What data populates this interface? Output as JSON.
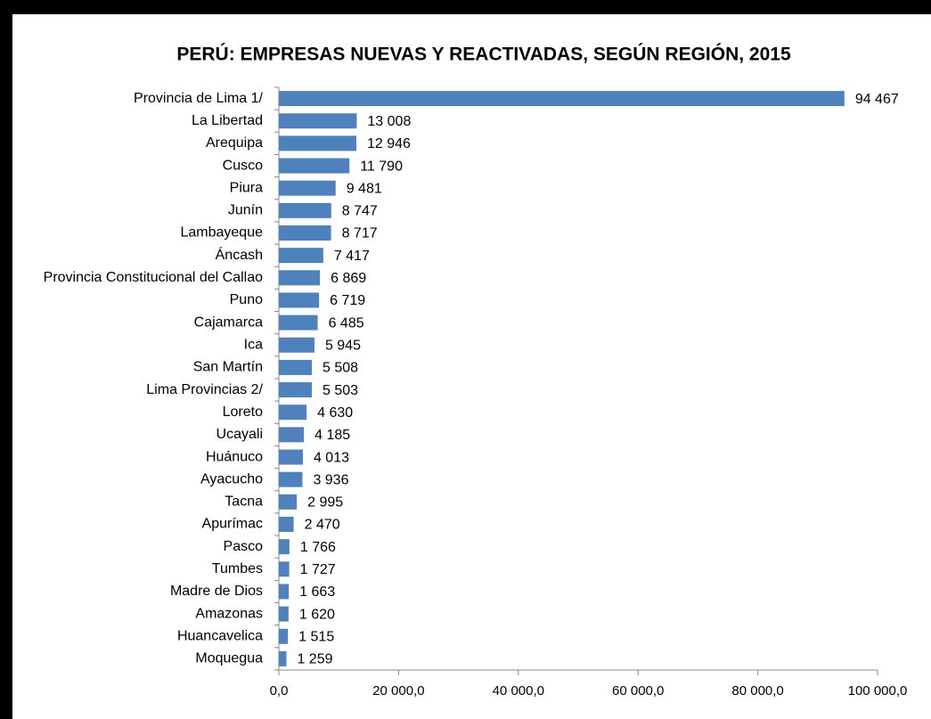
{
  "chart_data": {
    "type": "bar",
    "orientation": "horizontal",
    "title": "PERÚ: EMPRESAS NUEVAS Y REACTIVADAS, SEGÚN REGIÓN, 2015",
    "categories": [
      "Provincia de Lima 1/",
      "La Libertad",
      "Arequipa",
      "Cusco",
      "Piura",
      "Junín",
      "Lambayeque",
      "Áncash",
      "Provincia Constitucional del Callao",
      "Puno",
      "Cajamarca",
      "Ica",
      "San Martín",
      "Lima Provincias 2/",
      "Loreto",
      "Ucayali",
      "Huánuco",
      "Ayacucho",
      "Tacna",
      "Apurímac",
      "Pasco",
      "Tumbes",
      "Madre de Dios",
      "Amazonas",
      "Huancavelica",
      "Moquegua"
    ],
    "values": [
      94467,
      13008,
      12946,
      11790,
      9481,
      8747,
      8717,
      7417,
      6869,
      6719,
      6485,
      5945,
      5508,
      5503,
      4630,
      4185,
      4013,
      3936,
      2995,
      2470,
      1766,
      1727,
      1663,
      1620,
      1515,
      1259
    ],
    "value_labels": [
      "94 467",
      "13 008",
      "12 946",
      "11 790",
      "9 481",
      "8 747",
      "8 717",
      "7 417",
      "6 869",
      "6 719",
      "6 485",
      "5 945",
      "5 508",
      "5 503",
      "4 630",
      "4 185",
      "4 013",
      "3 936",
      "2 995",
      "2 470",
      "1 766",
      "1 727",
      "1 663",
      "1 620",
      "1 515",
      "1 259"
    ],
    "color": "#4f81bd",
    "xlim": [
      0,
      100000
    ],
    "xticks": [
      {
        "value": 0,
        "label": "0,0"
      },
      {
        "value": 20000,
        "label": "20 000,0"
      },
      {
        "value": 40000,
        "label": "40 000,0"
      },
      {
        "value": 60000,
        "label": "60 000,0"
      },
      {
        "value": 80000,
        "label": "80 000,0"
      },
      {
        "value": 100000,
        "label": "100 000,0"
      }
    ],
    "grid": false
  }
}
